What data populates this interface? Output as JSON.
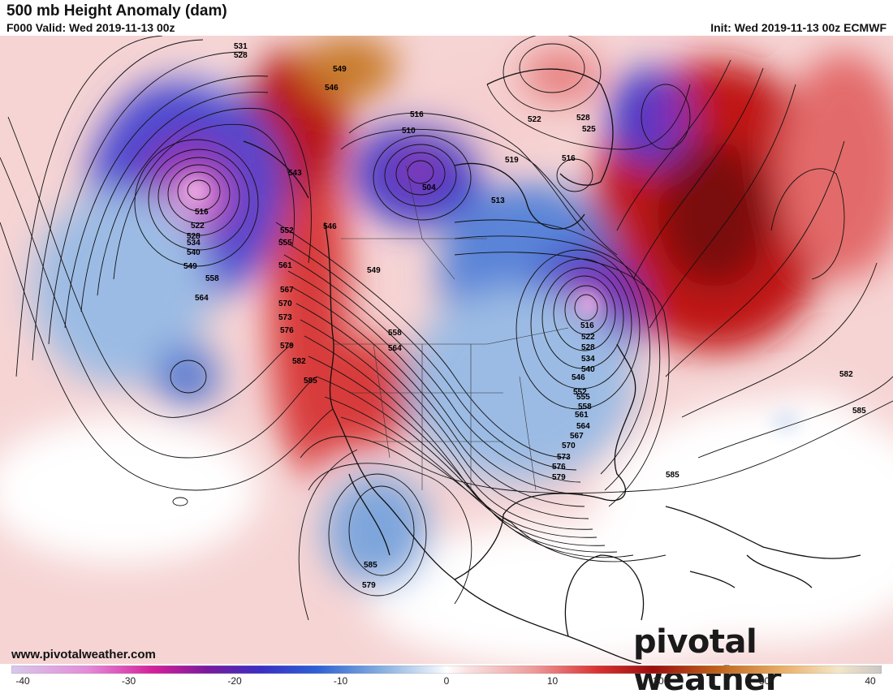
{
  "header": {
    "title": "500 mb Height Anomaly (dam)",
    "valid": "F000 Valid: Wed 2019-11-13 00z",
    "init": "Init: Wed 2019-11-13 00z ECMWF"
  },
  "footer": {
    "url": "www.pivotalweather.com",
    "brand": "pivotal weather"
  },
  "colorbar": {
    "min": -40,
    "max": 40,
    "ticks": [
      "-40",
      "-30",
      "-20",
      "-10",
      "0",
      "10",
      "20",
      "30",
      "40"
    ],
    "stops": [
      {
        "v": -40,
        "c": "#d8c8ec"
      },
      {
        "v": -33,
        "c": "#e58bd8"
      },
      {
        "v": -27,
        "c": "#d4209a"
      },
      {
        "v": -22,
        "c": "#7a1a9e"
      },
      {
        "v": -17,
        "c": "#3a2fc4"
      },
      {
        "v": -12,
        "c": "#2d5fd4"
      },
      {
        "v": -6,
        "c": "#86aedf"
      },
      {
        "v": -1,
        "c": "#e6eef8"
      },
      {
        "v": 0,
        "c": "#ffffff"
      },
      {
        "v": 2,
        "c": "#f9e0e0"
      },
      {
        "v": 8,
        "c": "#ef9a9a"
      },
      {
        "v": 14,
        "c": "#d83030"
      },
      {
        "v": 19,
        "c": "#9a0d0d"
      },
      {
        "v": 25,
        "c": "#c0641a"
      },
      {
        "v": 31,
        "c": "#eab06a"
      },
      {
        "v": 36,
        "c": "#f4e6c9"
      },
      {
        "v": 40,
        "c": "#c9c6c4"
      }
    ]
  },
  "anomaly_colors": {
    "strong_negative": "#d13cc0",
    "negative": "#4a4ad0",
    "weak_negative": "#9bbbe4",
    "strong_positive": "#8a0f0f",
    "positive": "#d83a3a",
    "weak_positive": "#f2b8b8",
    "extreme_positive": "#c87a2c"
  },
  "contour_labels": [
    "531",
    "528",
    "549",
    "546",
    "543",
    "516",
    "510",
    "504",
    "513",
    "519",
    "522",
    "528",
    "525",
    "516",
    "516",
    "522",
    "528",
    "534",
    "540",
    "549",
    "558",
    "564",
    "552",
    "555",
    "561",
    "567",
    "570",
    "573",
    "576",
    "579",
    "582",
    "585",
    "546",
    "549",
    "558",
    "564",
    "516",
    "522",
    "528",
    "534",
    "540",
    "546",
    "552",
    "555",
    "558",
    "561",
    "564",
    "567",
    "570",
    "573",
    "576",
    "579",
    "582",
    "585",
    "585",
    "585",
    "579",
    "582"
  ]
}
